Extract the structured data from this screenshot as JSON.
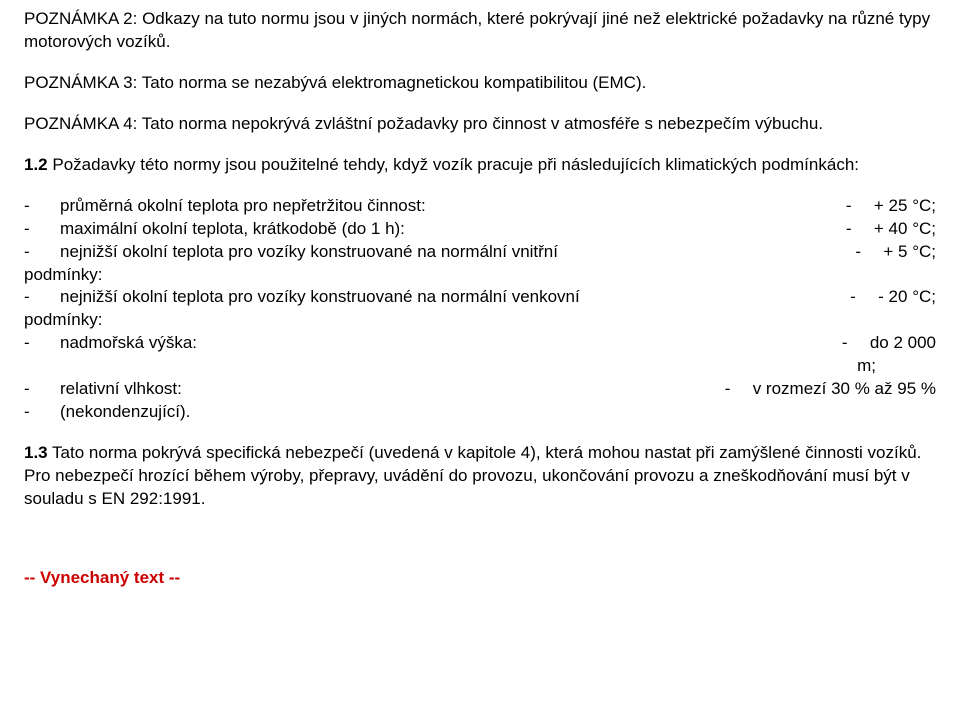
{
  "note2": "POZNÁMKA 2: Odkazy na tuto normu jsou v jiných normách, které pokrývají jiné než elektrické požadavky na různé typy motorových vozíků.",
  "note3": "POZNÁMKA 3: Tato norma se nezabývá elektromagnetickou kompatibilitou (EMC).",
  "note4": "POZNÁMKA 4: Tato norma nepokrývá zvláštní požadavky pro činnost v atmosféře s nebezpečím výbuchu.",
  "sec12_head": "1.2",
  "sec12_intro": " Požadavky této normy jsou použitelné tehdy, když vozík pracuje při následujících klimatických podmínkách:",
  "cond1_label": "průměrná okolní teplota pro nepřetržitou činnost:",
  "cond1_val": "+ 25 °C;",
  "cond2_label": "maximální okolní teplota, krátkodobě (do 1 h):",
  "cond2_val": "+ 40 °C;",
  "cond3_label": "nejnižší okolní teplota pro vozíky konstruované na normální vnitřní",
  "cond3_val": "+ 5 °C;",
  "cond3_line2": "podmínky:",
  "cond4_label": "nejnižší okolní teplota pro vozíky konstruované na normální venkovní",
  "cond4_val": "- 20 °C;",
  "cond4_line2": "podmínky:",
  "cond5_label": "nadmořská výška:",
  "cond5_val": "do 2 000",
  "cond5_line2": "m;",
  "cond6_label": "relativní vlhkost:",
  "cond6_val": "v rozmezí 30 % až 95 %",
  "cond7_label": "(nekondenzující).",
  "sec13_head": "1.3",
  "sec13_body": " Tato norma pokrývá specifická nebezpečí (uvedená v kapitole 4), která mohou nastat při zamýšlené činnosti vozíků. Pro nebezpečí hrozící během výroby, přepravy, uvádění do provozu, ukončování provozu a zneškodňování musí být v souladu s EN 292:1991.",
  "omitted": "-- Vynechaný text --",
  "colors": {
    "text": "#000000",
    "accent": "#cc0000",
    "background": "#ffffff"
  }
}
